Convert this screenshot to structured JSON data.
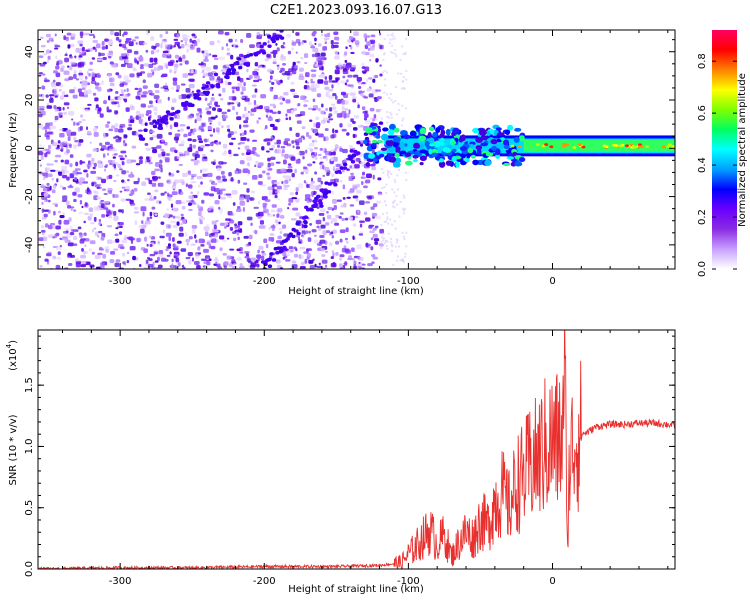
{
  "title": "C2E1.2023.093.16.07.G13",
  "chart_data": [
    {
      "type": "heatmap",
      "title": "",
      "xlabel": "Height of straight line (km)",
      "ylabel": "Frequency (Hz)",
      "xlim": [
        -357,
        85
      ],
      "ylim": [
        -50,
        49
      ],
      "xticks": [
        "-300",
        "-200",
        "-100",
        "0"
      ],
      "xtick_values": [
        -300,
        -200,
        -100,
        0
      ],
      "yticks": [
        "40",
        "20",
        "0",
        "-20",
        "-40"
      ],
      "ytick_values": [
        40,
        20,
        0,
        -20,
        -40
      ],
      "noise_region_x": [
        -357,
        -120
      ],
      "signal_band": {
        "x": [
          -130,
          85
        ],
        "center_freq": 1.0,
        "half_width": 3.5
      },
      "diagonal_streaks": [
        {
          "x0": -200,
          "y0": -50,
          "x1": -120,
          "y1": 10
        },
        {
          "x0": -285,
          "y0": 5,
          "x1": -185,
          "y1": 49
        }
      ],
      "colorbar": {
        "label": "Normalized spectral amplitude",
        "ticks": [
          "0.0",
          "0.2",
          "0.4",
          "0.6",
          "0.8"
        ],
        "tick_values": [
          0.0,
          0.2,
          0.4,
          0.6,
          0.8
        ],
        "range": [
          0,
          0.92
        ],
        "colors": [
          "#ffffff",
          "#c8a0ff",
          "#8a2be2",
          "#6a00ff",
          "#0000ff",
          "#00a0ff",
          "#00ffff",
          "#00ff60",
          "#7fff00",
          "#ffff00",
          "#ff8000",
          "#ff0000",
          "#ff0060"
        ]
      }
    },
    {
      "type": "line",
      "title": "",
      "xlabel": "Height of straight line (km)",
      "ylabel": "SNR (10 * v/v)",
      "y_scale_label": "(x10",
      "y_scale_exp": "4",
      "y_scale_close": ")",
      "xlim": [
        -357,
        85
      ],
      "ylim": [
        0,
        1.95
      ],
      "xticks": [
        "-300",
        "-200",
        "-100",
        "0"
      ],
      "xtick_values": [
        -300,
        -200,
        -100,
        0
      ],
      "yticks": [
        "0.0",
        "0.5",
        "1.0",
        "1.5"
      ],
      "ytick_values": [
        0.0,
        0.5,
        1.0,
        1.5
      ],
      "series": [
        {
          "color": "#e8302e",
          "x": [
            -357,
            -300,
            -250,
            -200,
            -150,
            -120,
            -105,
            -100,
            -95,
            -90,
            -85,
            -80,
            -75,
            -70,
            -65,
            -60,
            -55,
            -50,
            -45,
            -40,
            -35,
            -30,
            -25,
            -20,
            -15,
            -10,
            -5,
            0,
            5,
            8,
            9,
            10,
            12,
            15,
            20,
            25,
            30,
            35,
            40,
            50,
            60,
            70,
            80,
            85
          ],
          "y": [
            0.0,
            0.01,
            0.01,
            0.02,
            0.02,
            0.03,
            0.05,
            0.12,
            0.18,
            0.25,
            0.32,
            0.2,
            0.28,
            0.1,
            0.22,
            0.3,
            0.25,
            0.4,
            0.35,
            0.55,
            0.62,
            0.5,
            0.7,
            0.75,
            0.85,
            0.9,
            1.0,
            1.03,
            1.05,
            1.1,
            1.92,
            0.15,
            0.9,
            1.05,
            1.1,
            1.12,
            1.16,
            1.17,
            1.18,
            1.18,
            1.19,
            1.19,
            1.18,
            1.17
          ]
        }
      ]
    }
  ]
}
